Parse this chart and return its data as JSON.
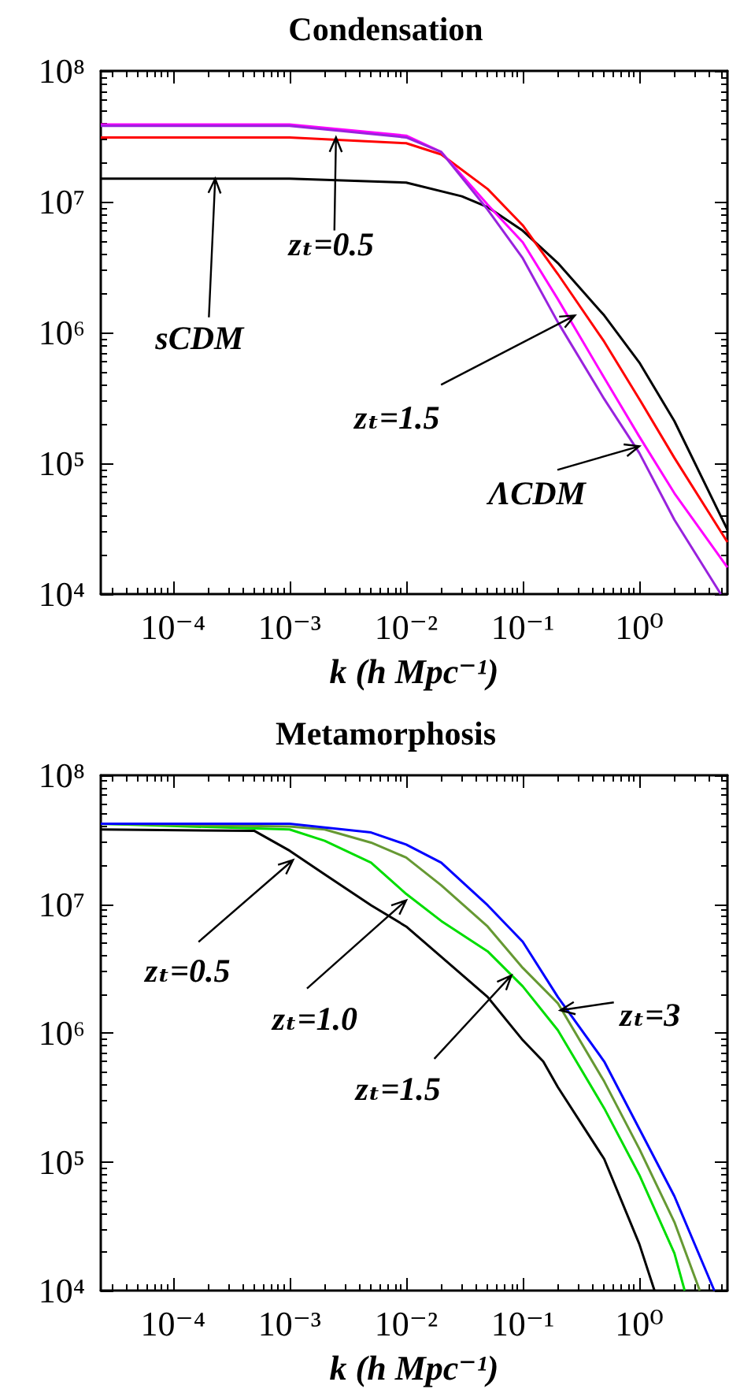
{
  "chart_data": [
    {
      "type": "line",
      "title": "Condensation",
      "xlabel": "k (h Mpc⁻¹)",
      "log": "xy",
      "grid": false,
      "marker": "none",
      "line_style": "solid",
      "xlim": [
        2.4e-05,
        5.7
      ],
      "ylim": [
        10000,
        100000000
      ],
      "xticks": [
        {
          "value": 0.0001,
          "label": "10⁻⁴"
        },
        {
          "value": 0.001,
          "label": "10⁻³"
        },
        {
          "value": 0.01,
          "label": "10⁻²"
        },
        {
          "value": 0.1,
          "label": "10⁻¹"
        },
        {
          "value": 1,
          "label": "10⁰"
        }
      ],
      "yticks": [
        {
          "value": 10000,
          "label": "10⁴"
        },
        {
          "value": 100000,
          "label": "10⁵"
        },
        {
          "value": 1000000,
          "label": "10⁶"
        },
        {
          "value": 10000000,
          "label": "10⁷"
        },
        {
          "value": 100000000,
          "label": "10⁸"
        }
      ],
      "series": [
        {
          "color": "#000000",
          "x": [
            2.4e-05,
            0.001,
            0.01,
            0.03,
            0.05,
            0.1,
            0.2,
            0.5,
            1,
            2,
            5.7
          ],
          "values": [
            15000000,
            15000000,
            14000000,
            11000000,
            9100000,
            6000000,
            3400000,
            1350000,
            590000,
            210000,
            31000
          ]
        },
        {
          "color": "#ff0000",
          "x": [
            2.4e-05,
            0.001,
            0.01,
            0.02,
            0.05,
            0.1,
            0.2,
            0.5,
            1,
            2,
            5.7
          ],
          "values": [
            31000000,
            31000000,
            28000000,
            23000000,
            12500000,
            6600000,
            2800000,
            850000,
            310000,
            110000,
            25000
          ]
        },
        {
          "color": "#ff00ff",
          "x": [
            2.4e-05,
            0.001,
            0.01,
            0.02,
            0.05,
            0.1,
            0.2,
            0.5,
            1,
            2,
            5.7
          ],
          "values": [
            39000000,
            39000000,
            32000000,
            24000000,
            9500000,
            4900000,
            1800000,
            450000,
            160000,
            59000,
            16000
          ]
        },
        {
          "color": "#9922dd",
          "x": [
            2.4e-05,
            0.001,
            0.01,
            0.02,
            0.05,
            0.1,
            0.2,
            0.5,
            1,
            2,
            5
          ],
          "values": [
            38000000,
            38000000,
            31000000,
            24000000,
            8700000,
            3700000,
            1200000,
            310000,
            120000,
            37000,
            10000
          ]
        }
      ],
      "annotations": [
        {
          "text": "sCDM",
          "x": 0.00023,
          "y": 15000000
        },
        {
          "text": "zₜ=0.5",
          "x": 0.0025,
          "y": 31000000
        },
        {
          "text": "zₜ=1.5",
          "x": 0.28,
          "y": 1350000
        },
        {
          "text": "ΛCDM",
          "x": 1,
          "y": 135000
        }
      ]
    },
    {
      "type": "line",
      "title": "Metamorphosis",
      "xlabel": "k (h Mpc⁻¹)",
      "log": "xy",
      "grid": false,
      "marker": "none",
      "line_style": "solid",
      "xlim": [
        2.4e-05,
        5.7
      ],
      "ylim": [
        10000,
        100000000
      ],
      "xticks": [
        {
          "value": 0.0001,
          "label": "10⁻⁴"
        },
        {
          "value": 0.001,
          "label": "10⁻³"
        },
        {
          "value": 0.01,
          "label": "10⁻²"
        },
        {
          "value": 0.1,
          "label": "10⁻¹"
        },
        {
          "value": 1,
          "label": "10⁰"
        }
      ],
      "yticks": [
        {
          "value": 10000,
          "label": "10⁴"
        },
        {
          "value": 100000,
          "label": "10⁵"
        },
        {
          "value": 1000000,
          "label": "10⁶"
        },
        {
          "value": 10000000,
          "label": "10⁷"
        },
        {
          "value": 100000000,
          "label": "10⁸"
        }
      ],
      "series": [
        {
          "color": "#000000",
          "x": [
            2.4e-05,
            0.0005,
            0.001,
            0.002,
            0.005,
            0.01,
            0.02,
            0.05,
            0.1,
            0.15,
            0.2,
            0.5,
            1,
            1.35
          ],
          "values": [
            38000000,
            37000000,
            26000000,
            17000000,
            9800000,
            6700000,
            3900000,
            1900000,
            880000,
            600000,
            380000,
            105000,
            23000,
            10000
          ]
        },
        {
          "color": "#00dd00",
          "x": [
            2.4e-05,
            0.001,
            0.002,
            0.005,
            0.01,
            0.02,
            0.05,
            0.1,
            0.2,
            0.5,
            1,
            2,
            2.45
          ],
          "values": [
            42000000,
            38000000,
            31000000,
            21000000,
            12000000,
            7400000,
            4300000,
            2300000,
            1050000,
            260000,
            79000,
            19500,
            10000
          ]
        },
        {
          "color": "#669933",
          "x": [
            2.4e-05,
            0.001,
            0.002,
            0.005,
            0.01,
            0.02,
            0.05,
            0.1,
            0.2,
            0.5,
            1,
            2,
            3.3
          ],
          "values": [
            42000000,
            40000000,
            38000000,
            30000000,
            23000000,
            14000000,
            6700000,
            3200000,
            1700000,
            420000,
            126000,
            34000,
            10000
          ]
        },
        {
          "color": "#0000ff",
          "x": [
            2.4e-05,
            0.001,
            0.005,
            0.01,
            0.02,
            0.05,
            0.1,
            0.2,
            0.5,
            1,
            2,
            4.4
          ],
          "values": [
            42000000,
            42000000,
            36000000,
            29000000,
            21000000,
            9800000,
            5100000,
            1900000,
            600000,
            180000,
            54000,
            10000
          ]
        }
      ],
      "annotations": [
        {
          "text": "zₜ=0.5",
          "x": 0.00107,
          "y": 22000000
        },
        {
          "text": "zₜ=1.0",
          "x": 0.01,
          "y": 10700000
        },
        {
          "text": "zₜ=1.5",
          "x": 0.08,
          "y": 2800000
        },
        {
          "text": "zₜ=3",
          "x": 0.21,
          "y": 1500000
        }
      ]
    }
  ]
}
